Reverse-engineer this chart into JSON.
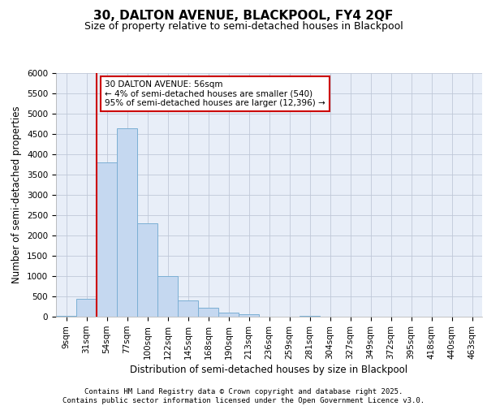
{
  "title1": "30, DALTON AVENUE, BLACKPOOL, FY4 2QF",
  "title2": "Size of property relative to semi-detached houses in Blackpool",
  "xlabel": "Distribution of semi-detached houses by size in Blackpool",
  "ylabel": "Number of semi-detached properties",
  "categories": [
    "9sqm",
    "31sqm",
    "54sqm",
    "77sqm",
    "100sqm",
    "122sqm",
    "145sqm",
    "168sqm",
    "190sqm",
    "213sqm",
    "236sqm",
    "259sqm",
    "281sqm",
    "304sqm",
    "327sqm",
    "349sqm",
    "372sqm",
    "395sqm",
    "418sqm",
    "440sqm",
    "463sqm"
  ],
  "values": [
    30,
    450,
    3800,
    4650,
    2300,
    1000,
    400,
    230,
    110,
    70,
    0,
    0,
    30,
    0,
    0,
    0,
    0,
    0,
    0,
    0,
    0
  ],
  "bar_color": "#c5d8f0",
  "bar_edge_color": "#7bafd4",
  "vline_color": "#cc0000",
  "annotation_text": "30 DALTON AVENUE: 56sqm\n← 4% of semi-detached houses are smaller (540)\n95% of semi-detached houses are larger (12,396) →",
  "annotation_box_color": "#ffffff",
  "annotation_box_edge": "#cc0000",
  "ylim": [
    0,
    6000
  ],
  "yticks": [
    0,
    500,
    1000,
    1500,
    2000,
    2500,
    3000,
    3500,
    4000,
    4500,
    5000,
    5500,
    6000
  ],
  "grid_color": "#c0c8d8",
  "bg_color": "#e8eef8",
  "footer": "Contains HM Land Registry data © Crown copyright and database right 2025.\nContains public sector information licensed under the Open Government Licence v3.0.",
  "title_fontsize": 11,
  "subtitle_fontsize": 9,
  "axis_label_fontsize": 8.5,
  "tick_fontsize": 7.5,
  "footer_fontsize": 6.5,
  "annotation_fontsize": 7.5
}
